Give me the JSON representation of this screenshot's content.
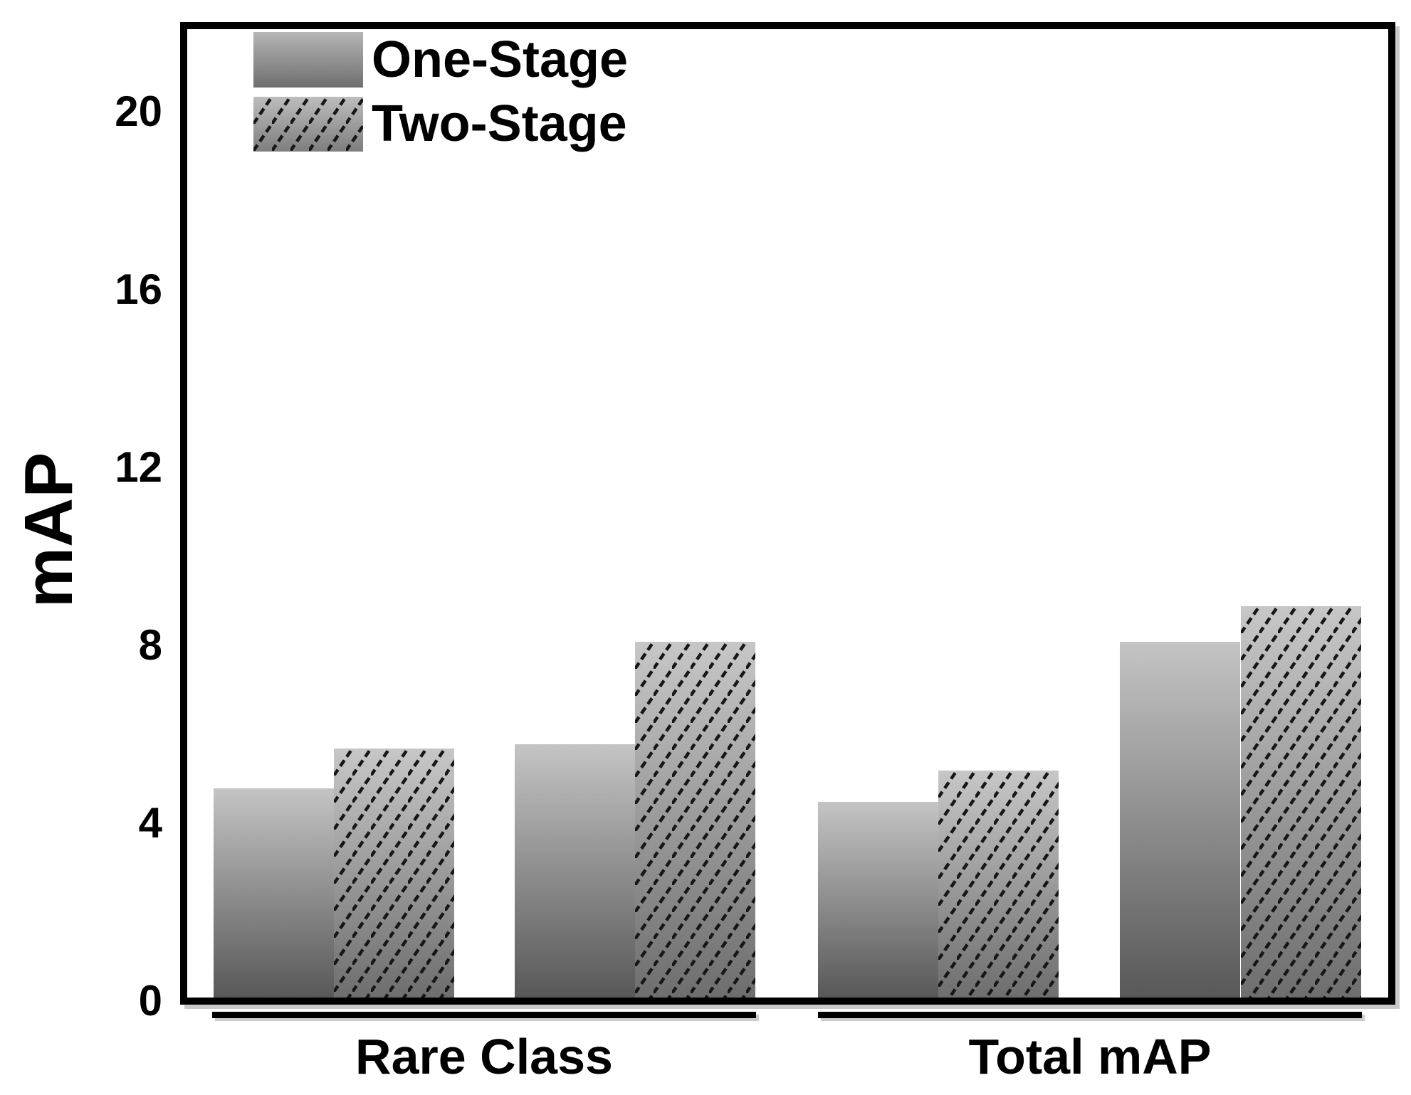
{
  "figure": {
    "ylabel": "mAP",
    "background": "#ffffff",
    "text_color": "#000000",
    "legend": [
      {
        "label": "One-Stage",
        "style": "solid-gray-gradient"
      },
      {
        "label": "Two-Stage",
        "style": "hatched-gray-gradient"
      }
    ]
  },
  "chart_data": {
    "type": "bar",
    "title": "",
    "xlabel": "",
    "ylabel": "mAP",
    "ylim": [
      0,
      22
    ],
    "yticks": [
      0,
      4,
      8,
      12,
      16,
      20
    ],
    "grid": false,
    "legend_position": "upper-left",
    "categories": [
      "Rare Class",
      "Total mAP"
    ],
    "series": [
      {
        "name": "One-Stage",
        "pattern": "solid",
        "values_by_category": [
          [
            4.7,
            5.7
          ],
          [
            4.4,
            8.0
          ]
        ]
      },
      {
        "name": "Two-Stage",
        "pattern": "hatched",
        "values_by_category": [
          [
            5.6,
            8.0
          ],
          [
            5.1,
            8.8
          ]
        ]
      }
    ],
    "bar_order": "within each category, two adjacent pairs drawn left-to-right: One-Stage, Two-Stage, One-Stage, Two-Stage",
    "colors": {
      "bar_gradient_top": "#c4c4c4",
      "bar_gradient_bottom_solid": "#585858",
      "bar_gradient_bottom_hatched": "#6e6e6e",
      "hatch_line": "#161616",
      "axis": "#000000"
    }
  }
}
